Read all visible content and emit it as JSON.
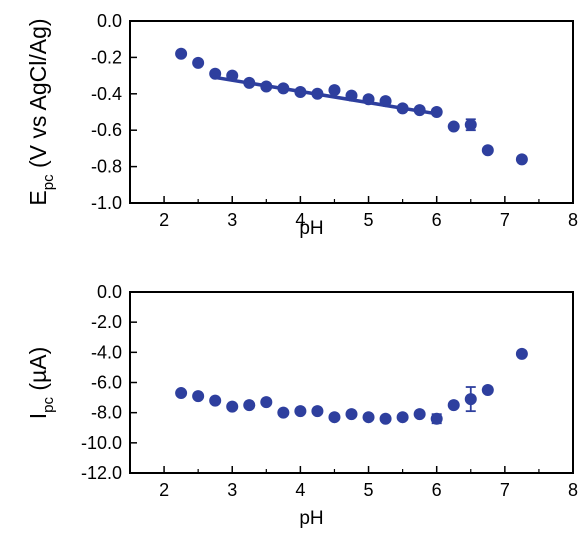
{
  "marker_color": "#2e3f9e",
  "chart_data": [
    {
      "type": "scatter",
      "xlabel": "pH",
      "ylabel_main": "E",
      "ylabel_sub": "pc",
      "ylabel_rest": " (V vs AgCl/Ag)",
      "xlim": [
        1.5,
        8
      ],
      "ylim": [
        -1.0,
        0.0
      ],
      "xticks": [
        2,
        3,
        4,
        5,
        6,
        7,
        8
      ],
      "xtick_labels": [
        "2",
        "3",
        "4",
        "5",
        "6",
        "7",
        "8"
      ],
      "yticks": [
        0.0,
        -0.2,
        -0.4,
        -0.6,
        -0.8,
        -1.0
      ],
      "ytick_labels": [
        "0.0",
        "-0.2",
        "-0.4",
        "-0.6",
        "-0.8",
        "-1.0"
      ],
      "grid": false,
      "points": [
        {
          "x": 2.25,
          "y": -0.18
        },
        {
          "x": 2.5,
          "y": -0.23
        },
        {
          "x": 2.75,
          "y": -0.29
        },
        {
          "x": 3.0,
          "y": -0.3
        },
        {
          "x": 3.25,
          "y": -0.34
        },
        {
          "x": 3.5,
          "y": -0.36
        },
        {
          "x": 3.75,
          "y": -0.37
        },
        {
          "x": 4.0,
          "y": -0.39
        },
        {
          "x": 4.25,
          "y": -0.4
        },
        {
          "x": 4.5,
          "y": -0.38
        },
        {
          "x": 4.75,
          "y": -0.41
        },
        {
          "x": 5.0,
          "y": -0.43
        },
        {
          "x": 5.25,
          "y": -0.44
        },
        {
          "x": 5.5,
          "y": -0.48
        },
        {
          "x": 5.75,
          "y": -0.49
        },
        {
          "x": 6.0,
          "y": -0.5
        },
        {
          "x": 6.25,
          "y": -0.58
        },
        {
          "x": 6.5,
          "y": -0.57,
          "err": 0.03
        },
        {
          "x": 6.75,
          "y": -0.71
        },
        {
          "x": 7.25,
          "y": -0.76
        }
      ],
      "fit_line": {
        "x": [
          2.75,
          6.0
        ],
        "y": [
          -0.31,
          -0.51
        ]
      }
    },
    {
      "type": "scatter",
      "xlabel": "pH",
      "ylabel_main": "I",
      "ylabel_sub": "pc",
      "ylabel_rest": " (µA)",
      "xlim": [
        1.5,
        8
      ],
      "ylim": [
        -12.0,
        0.0
      ],
      "xticks": [
        2,
        3,
        4,
        5,
        6,
        7,
        8
      ],
      "xtick_labels": [
        "2",
        "3",
        "4",
        "5",
        "6",
        "7",
        "8"
      ],
      "yticks": [
        0.0,
        -2.0,
        -4.0,
        -6.0,
        -8.0,
        -10.0,
        -12.0
      ],
      "ytick_labels": [
        "0.0",
        "-2.0",
        "-4.0",
        "-6.0",
        "-8.0",
        "-10.0",
        "-12.0"
      ],
      "grid": false,
      "points": [
        {
          "x": 2.25,
          "y": -6.7
        },
        {
          "x": 2.5,
          "y": -6.9
        },
        {
          "x": 2.75,
          "y": -7.2
        },
        {
          "x": 3.0,
          "y": -7.6
        },
        {
          "x": 3.25,
          "y": -7.5
        },
        {
          "x": 3.5,
          "y": -7.3
        },
        {
          "x": 3.75,
          "y": -8.0
        },
        {
          "x": 4.0,
          "y": -7.9
        },
        {
          "x": 4.25,
          "y": -7.9
        },
        {
          "x": 4.5,
          "y": -8.3
        },
        {
          "x": 4.75,
          "y": -8.1
        },
        {
          "x": 5.0,
          "y": -8.3
        },
        {
          "x": 5.25,
          "y": -8.4
        },
        {
          "x": 5.5,
          "y": -8.3
        },
        {
          "x": 5.75,
          "y": -8.1
        },
        {
          "x": 6.0,
          "y": -8.4,
          "err": 0.3
        },
        {
          "x": 6.25,
          "y": -7.5
        },
        {
          "x": 6.5,
          "y": -7.1,
          "err": 0.8
        },
        {
          "x": 6.75,
          "y": -6.5
        },
        {
          "x": 7.25,
          "y": -4.1
        }
      ]
    }
  ]
}
